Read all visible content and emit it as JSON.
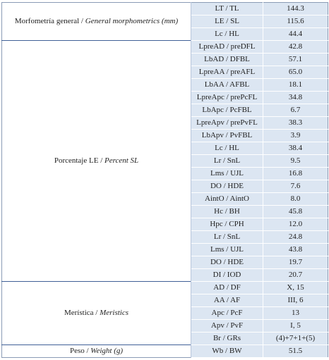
{
  "table": {
    "groups": [
      {
        "label": "Morfometría general /",
        "label_en": "General morphometrics (mm)",
        "rows": [
          [
            "LT / TL",
            "144.3"
          ],
          [
            "LE / SL",
            "115.6"
          ],
          [
            "Lc / HL",
            "44.4"
          ]
        ]
      },
      {
        "label": "Porcentaje LE /",
        "label_en": "Percent SL",
        "rows": [
          [
            "LpreAD / preDFL",
            "42.8"
          ],
          [
            "LbAD / DFBL",
            "57.1"
          ],
          [
            "LpreAA / preAFL",
            "65.0"
          ],
          [
            "LbAA / AFBL",
            "18.1"
          ],
          [
            "LpreApc / prePcFL",
            "34.8"
          ],
          [
            "LbApc / PcFBL",
            "6.7"
          ],
          [
            "LpreApv / prePvFL",
            "38.3"
          ],
          [
            "LbApv / PvFBL",
            "3.9"
          ],
          [
            "Lc / HL",
            "38.4"
          ],
          [
            "Lr / SnL",
            "9.5"
          ],
          [
            "Lms / UJL",
            "16.8"
          ],
          [
            "DO / HDE",
            "7.6"
          ],
          [
            "AintO / AintO",
            "8.0"
          ],
          [
            "Hc / BH",
            "45.8"
          ],
          [
            "Hpc / CPH",
            "12.0"
          ],
          [
            "Lr / SnL",
            "24.8"
          ],
          [
            "Lms / UJL",
            "43.8"
          ],
          [
            "DO / HDE",
            "19.7"
          ],
          [
            "DI / IOD",
            "20.7"
          ]
        ]
      },
      {
        "label": "Merística /",
        "label_en": "Meristics",
        "rows": [
          [
            "AD / DF",
            "X, 15"
          ],
          [
            "AA / AF",
            "III, 6"
          ],
          [
            "Apc / PcF",
            "13"
          ],
          [
            "Apv / PvF",
            "I, 5"
          ],
          [
            "Br / GRs",
            "(4)+7+1+(5)"
          ]
        ]
      },
      {
        "label": "Peso /",
        "label_en": "Weight (g)",
        "rows": [
          [
            "Wb / BW",
            "51.5"
          ]
        ]
      }
    ]
  }
}
